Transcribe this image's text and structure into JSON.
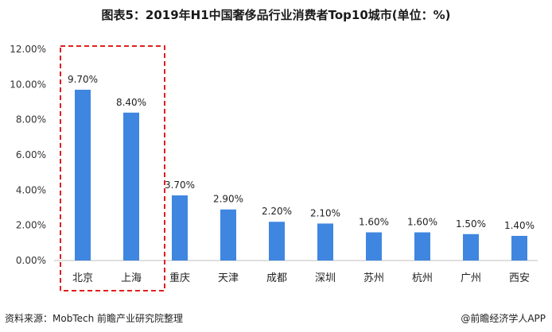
{
  "chart_data": {
    "type": "bar",
    "title": "图表5：2019年H1中国奢侈品行业消费者Top10城市(单位：%)",
    "categories": [
      "北京",
      "上海",
      "重庆",
      "天津",
      "成都",
      "深圳",
      "苏州",
      "杭州",
      "广州",
      "西安"
    ],
    "values": [
      9.7,
      8.4,
      3.7,
      2.9,
      2.2,
      2.1,
      1.6,
      1.6,
      1.5,
      1.4
    ],
    "value_labels": [
      "9.70%",
      "8.40%",
      "3.70%",
      "2.90%",
      "2.20%",
      "2.10%",
      "1.60%",
      "1.60%",
      "1.50%",
      "1.40%"
    ],
    "y_ticks": [
      "0.00%",
      "2.00%",
      "4.00%",
      "6.00%",
      "8.00%",
      "10.00%",
      "12.00%"
    ],
    "ylim": [
      0,
      12
    ],
    "xlabel": "",
    "ylabel": "",
    "grid": false,
    "highlight": {
      "categories": [
        "北京",
        "上海"
      ],
      "style": "dashed-box",
      "color": "#e02020"
    },
    "bar_color": "#3f86e0"
  },
  "footer": {
    "source": "资料来源：MobTech 前瞻产业研究院整理",
    "credit": "@前瞻经济学人APP"
  }
}
